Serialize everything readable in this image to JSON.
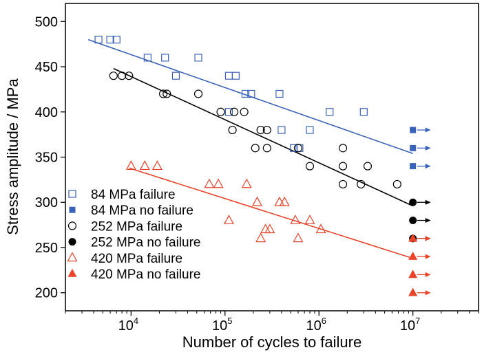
{
  "chart_data": {
    "type": "scatter",
    "title": "",
    "xlabel": "Number of cycles to failure",
    "ylabel": "Stress amplitude / MPa",
    "xscale": "log",
    "xlim": [
      2000,
      50000000
    ],
    "ylim": [
      180,
      520
    ],
    "x_ticks": [
      {
        "value": 10000,
        "base": "10",
        "exp": "4"
      },
      {
        "value": 100000,
        "base": "10",
        "exp": "5"
      },
      {
        "value": 1000000,
        "base": "10",
        "exp": "6"
      },
      {
        "value": 10000000,
        "base": "10",
        "exp": "7"
      }
    ],
    "y_ticks": [
      {
        "value": 200,
        "label": "200"
      },
      {
        "value": 250,
        "label": "250"
      },
      {
        "value": 300,
        "label": "300"
      },
      {
        "value": 350,
        "label": "350"
      },
      {
        "value": 400,
        "label": "400"
      },
      {
        "value": 450,
        "label": "450"
      },
      {
        "value": 500,
        "label": "500"
      }
    ],
    "grid": false,
    "legend_position": "bottom-left",
    "series": [
      {
        "name": "84 MPa failure",
        "marker": "square",
        "filled": false,
        "color": "#3a62b8",
        "points": [
          [
            4500,
            480
          ],
          [
            6000,
            480
          ],
          [
            7000,
            480
          ],
          [
            15000,
            460
          ],
          [
            23000,
            460
          ],
          [
            30000,
            440
          ],
          [
            52000,
            460
          ],
          [
            110000,
            440
          ],
          [
            130000,
            440
          ],
          [
            110000,
            400
          ],
          [
            165000,
            420
          ],
          [
            190000,
            420
          ],
          [
            380000,
            420
          ],
          [
            400000,
            380
          ],
          [
            540000,
            360
          ],
          [
            620000,
            360
          ],
          [
            800000,
            380
          ],
          [
            1300000,
            400
          ],
          [
            3000000,
            400
          ]
        ]
      },
      {
        "name": "84 MPa no failure",
        "marker": "square",
        "filled": true,
        "color": "#3a62b8",
        "points": [
          [
            10000000,
            380
          ],
          [
            10000000,
            360
          ],
          [
            10000000,
            340
          ]
        ]
      },
      {
        "name": "252 MPa failure",
        "marker": "circle",
        "filled": false,
        "color": "#000000",
        "points": [
          [
            6500,
            440
          ],
          [
            8000,
            440
          ],
          [
            9500,
            440
          ],
          [
            22000,
            420
          ],
          [
            24000,
            420
          ],
          [
            52000,
            420
          ],
          [
            90000,
            400
          ],
          [
            125000,
            400
          ],
          [
            160000,
            400
          ],
          [
            120000,
            380
          ],
          [
            210000,
            360
          ],
          [
            240000,
            380
          ],
          [
            280000,
            380
          ],
          [
            280000,
            360
          ],
          [
            600000,
            360
          ],
          [
            800000,
            340
          ],
          [
            1800000,
            360
          ],
          [
            1800000,
            340
          ],
          [
            1800000,
            320
          ],
          [
            2800000,
            320
          ],
          [
            3300000,
            340
          ],
          [
            6800000,
            320
          ]
        ]
      },
      {
        "name": "252 MPa no failure",
        "marker": "circle",
        "filled": true,
        "color": "#000000",
        "points": [
          [
            10000000,
            300
          ],
          [
            10000000,
            280
          ],
          [
            10000000,
            260
          ]
        ]
      },
      {
        "name": "420 MPa failure",
        "marker": "triangle",
        "filled": false,
        "color": "#e8442a",
        "points": [
          [
            10000,
            340
          ],
          [
            14000,
            340
          ],
          [
            19000,
            340
          ],
          [
            68000,
            320
          ],
          [
            85000,
            320
          ],
          [
            170000,
            320
          ],
          [
            110000,
            280
          ],
          [
            220000,
            300
          ],
          [
            240000,
            260
          ],
          [
            270000,
            270
          ],
          [
            300000,
            270
          ],
          [
            380000,
            300
          ],
          [
            430000,
            300
          ],
          [
            560000,
            280
          ],
          [
            600000,
            260
          ],
          [
            800000,
            280
          ],
          [
            1050000,
            270
          ]
        ]
      },
      {
        "name": "420 MPa no failure",
        "marker": "triangle",
        "filled": true,
        "color": "#e8442a",
        "points": [
          [
            10000000,
            260
          ],
          [
            10000000,
            240
          ],
          [
            10000000,
            220
          ],
          [
            10000000,
            200
          ]
        ]
      }
    ],
    "fit_lines": [
      {
        "color": "#3a62b8",
        "from": [
          3500,
          480
        ],
        "to": [
          10000000,
          354
        ]
      },
      {
        "color": "#000000",
        "from": [
          6500,
          448
        ],
        "to": [
          10000000,
          296
        ]
      },
      {
        "color": "#e8442a",
        "from": [
          9500,
          338
        ],
        "to": [
          10000000,
          238
        ]
      }
    ],
    "runout_arrows": [
      {
        "color": "#3a62b8",
        "x": 10000000,
        "y": [
          380,
          360,
          340
        ]
      },
      {
        "color": "#000000",
        "x": 10000000,
        "y": [
          300,
          280,
          260
        ]
      },
      {
        "color": "#e8442a",
        "x": 10000000,
        "y": [
          260,
          240,
          220,
          200
        ]
      }
    ]
  }
}
